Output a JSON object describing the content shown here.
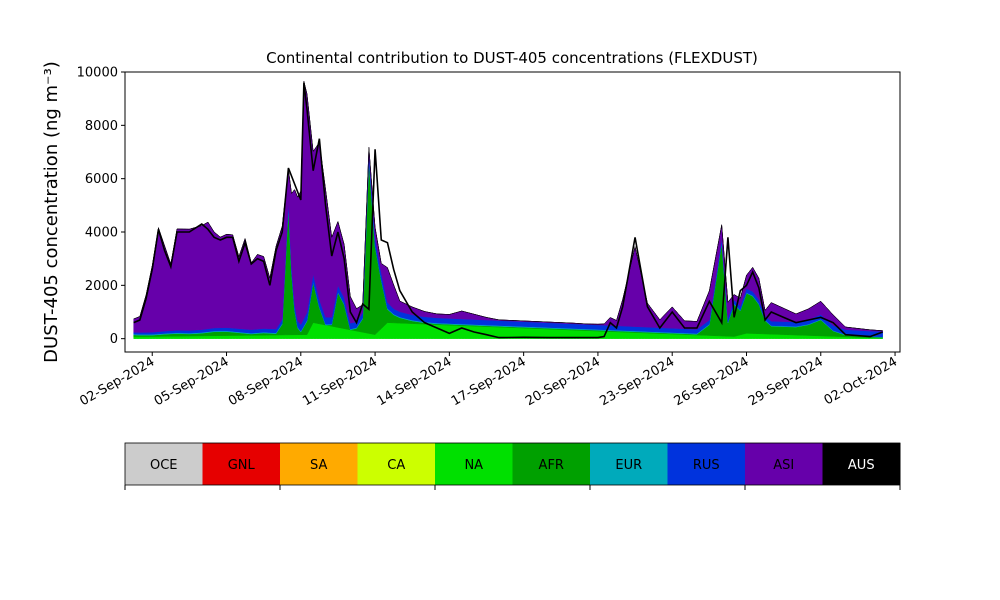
{
  "chart_data": {
    "type": "area",
    "title": "Continental contribution to DUST-405 concentrations (FLEXDUST)",
    "ylabel": "DUST-405 concentration (ng m⁻³)",
    "xlabel": "",
    "ylim": [
      -500,
      10000
    ],
    "yticks": [
      0,
      2000,
      4000,
      6000,
      8000,
      10000
    ],
    "xlim_days_from_2024_09_01": [
      -0.1,
      31.2
    ],
    "xticks": [
      "02-Sep-2024",
      "05-Sep-2024",
      "08-Sep-2024",
      "11-Sep-2024",
      "14-Sep-2024",
      "17-Sep-2024",
      "20-Sep-2024",
      "23-Sep-2024",
      "26-Sep-2024",
      "29-Sep-2024",
      "02-Oct-2024"
    ],
    "grid": false,
    "stacking_order": [
      "OCE",
      "GNL",
      "SA",
      "CA",
      "NA",
      "AFR",
      "EUR",
      "RUS",
      "ASI",
      "AUS"
    ],
    "legend": [
      {
        "name": "OCE",
        "color": "#cccccc",
        "text_color": "#000000"
      },
      {
        "name": "GNL",
        "color": "#e60000",
        "text_color": "#000000"
      },
      {
        "name": "SA",
        "color": "#ffaa00",
        "text_color": "#000000"
      },
      {
        "name": "CA",
        "color": "#ccff00",
        "text_color": "#000000"
      },
      {
        "name": "NA",
        "color": "#00e000",
        "text_color": "#000000"
      },
      {
        "name": "AFR",
        "color": "#00a000",
        "text_color": "#000000"
      },
      {
        "name": "EUR",
        "color": "#00aabb",
        "text_color": "#000000"
      },
      {
        "name": "RUS",
        "color": "#0033dd",
        "text_color": "#000000"
      },
      {
        "name": "ASI",
        "color": "#6600aa",
        "text_color": "#000000"
      },
      {
        "name": "AUS",
        "color": "#000000",
        "text_color": "#ffffff"
      }
    ],
    "series": [
      {
        "name": "NA",
        "color": "#00e000",
        "x_dates": [
          "2024-09-02 00:00",
          "2024-09-08 06:00",
          "2024-09-08 12:00",
          "2024-09-11 00:00",
          "2024-09-11 12:00",
          "2024-09-25 12:00",
          "2024-09-26 00:00",
          "2024-10-01 12:00"
        ],
        "values": [
          80,
          150,
          600,
          150,
          600,
          80,
          200,
          20
        ]
      },
      {
        "name": "AFR",
        "color": "#00a000",
        "x_dates": [
          "2024-09-01 06:00",
          "2024-09-01 12:00",
          "2024-09-02 00:00",
          "2024-09-02 12:00",
          "2024-09-03 00:00",
          "2024-09-03 12:00",
          "2024-09-04 00:00",
          "2024-09-04 12:00",
          "2024-09-05 00:00",
          "2024-09-05 12:00",
          "2024-09-06 00:00",
          "2024-09-06 12:00",
          "2024-09-07 00:00",
          "2024-09-07 06:00",
          "2024-09-07 12:00",
          "2024-09-07 16:00",
          "2024-09-07 20:00",
          "2024-09-08 00:00",
          "2024-09-08 06:00",
          "2024-09-08 12:00",
          "2024-09-08 18:00",
          "2024-09-09 00:00",
          "2024-09-09 06:00",
          "2024-09-09 12:00",
          "2024-09-09 18:00",
          "2024-09-10 00:00",
          "2024-09-10 06:00",
          "2024-09-10 12:00",
          "2024-09-10 18:00",
          "2024-09-11 00:00",
          "2024-09-11 06:00",
          "2024-09-11 12:00",
          "2024-09-11 18:00",
          "2024-09-12 00:00",
          "2024-09-12 12:00",
          "2024-09-13 00:00",
          "2024-09-13 12:00",
          "2024-09-14 00:00",
          "2024-09-15 00:00",
          "2024-09-16 00:00",
          "2024-09-17 00:00",
          "2024-09-18 00:00",
          "2024-09-19 00:00",
          "2024-09-20 00:00",
          "2024-09-21 00:00",
          "2024-09-22 00:00",
          "2024-09-23 00:00",
          "2024-09-24 00:00",
          "2024-09-24 12:00",
          "2024-09-25 00:00",
          "2024-09-25 06:00",
          "2024-09-25 12:00",
          "2024-09-25 18:00",
          "2024-09-26 00:00",
          "2024-09-26 06:00",
          "2024-09-26 12:00",
          "2024-09-26 18:00",
          "2024-09-27 00:00",
          "2024-09-27 12:00",
          "2024-09-28 00:00",
          "2024-09-28 12:00",
          "2024-09-29 00:00",
          "2024-09-29 12:00",
          "2024-09-30 00:00",
          "2024-10-01 00:00",
          "2024-10-01 12:00"
        ],
        "values": [
          60,
          50,
          50,
          80,
          100,
          80,
          100,
          150,
          150,
          100,
          50,
          80,
          50,
          400,
          4800,
          1500,
          300,
          100,
          500,
          1500,
          600,
          0,
          50,
          1300,
          900,
          0,
          100,
          500,
          6500,
          3300,
          1800,
          500,
          300,
          200,
          100,
          50,
          30,
          30,
          30,
          30,
          30,
          30,
          30,
          30,
          30,
          30,
          30,
          30,
          400,
          3500,
          500,
          1200,
          900,
          1500,
          1400,
          1100,
          500,
          300,
          300,
          300,
          400,
          600,
          200,
          60,
          30,
          30
        ]
      },
      {
        "name": "EUR",
        "color": "#00aabb",
        "x_dates": [
          "2024-09-01 06:00",
          "2024-09-10 00:00",
          "2024-09-20 00:00",
          "2024-10-01 12:00"
        ],
        "values": [
          30,
          30,
          30,
          20
        ]
      },
      {
        "name": "RUS",
        "color": "#0033dd",
        "x_dates": [
          "2024-09-01 06:00",
          "2024-09-07 06:00",
          "2024-09-08 00:00",
          "2024-09-08 06:00",
          "2024-09-10 12:00",
          "2024-09-11 00:00",
          "2024-09-11 18:00",
          "2024-09-25 12:00",
          "2024-10-01 12:00"
        ],
        "values": [
          70,
          150,
          250,
          300,
          200,
          300,
          200,
          150,
          200
        ]
      },
      {
        "name": "ASI",
        "color": "#6600aa",
        "x_dates": [
          "2024-09-01 06:00",
          "2024-09-01 12:00",
          "2024-09-01 18:00",
          "2024-09-02 00:00",
          "2024-09-02 06:00",
          "2024-09-02 12:00",
          "2024-09-02 18:00",
          "2024-09-03 00:00",
          "2024-09-03 12:00",
          "2024-09-04 00:00",
          "2024-09-04 06:00",
          "2024-09-04 12:00",
          "2024-09-04 18:00",
          "2024-09-05 00:00",
          "2024-09-05 06:00",
          "2024-09-05 12:00",
          "2024-09-05 18:00",
          "2024-09-06 00:00",
          "2024-09-06 06:00",
          "2024-09-06 12:00",
          "2024-09-06 18:00",
          "2024-09-07 00:00",
          "2024-09-07 06:00",
          "2024-09-07 12:00",
          "2024-09-07 18:00",
          "2024-09-08 00:00",
          "2024-09-08 03:00",
          "2024-09-08 06:00",
          "2024-09-08 12:00",
          "2024-09-08 18:00",
          "2024-09-09 00:00",
          "2024-09-09 06:00",
          "2024-09-09 12:00",
          "2024-09-09 18:00",
          "2024-09-10 00:00",
          "2024-09-10 06:00",
          "2024-09-10 12:00",
          "2024-09-10 18:00",
          "2024-09-11 00:00",
          "2024-09-11 06:00",
          "2024-09-11 12:00",
          "2024-09-11 18:00",
          "2024-09-12 00:00",
          "2024-09-12 12:00",
          "2024-09-13 00:00",
          "2024-09-13 12:00",
          "2024-09-14 00:00",
          "2024-09-14 12:00",
          "2024-09-15 00:00",
          "2024-09-15 12:00",
          "2024-09-16 00:00",
          "2024-09-17 00:00",
          "2024-09-18 00:00",
          "2024-09-19 00:00",
          "2024-09-19 12:00",
          "2024-09-20 00:00",
          "2024-09-20 06:00",
          "2024-09-20 12:00",
          "2024-09-20 18:00",
          "2024-09-21 00:00",
          "2024-09-21 12:00",
          "2024-09-22 00:00",
          "2024-09-22 12:00",
          "2024-09-23 00:00",
          "2024-09-23 12:00",
          "2024-09-24 00:00",
          "2024-09-24 12:00",
          "2024-09-25 00:00",
          "2024-09-25 06:00",
          "2024-09-25 12:00",
          "2024-09-25 18:00",
          "2024-09-26 00:00",
          "2024-09-26 06:00",
          "2024-09-26 12:00",
          "2024-09-26 18:00",
          "2024-09-27 00:00",
          "2024-09-27 12:00",
          "2024-09-28 00:00",
          "2024-09-28 12:00",
          "2024-09-29 00:00",
          "2024-09-29 12:00",
          "2024-09-30 00:00",
          "2024-10-01 00:00",
          "2024-10-01 12:00"
        ],
        "values": [
          500,
          600,
          1400,
          2500,
          3900,
          3200,
          2500,
          3800,
          3800,
          3900,
          4000,
          3600,
          3400,
          3500,
          3500,
          2700,
          3400,
          2500,
          2800,
          2700,
          1900,
          3100,
          3500,
          1200,
          4300,
          5000,
          8900,
          8200,
          4600,
          5900,
          4800,
          3000,
          2400,
          2000,
          1000,
          500,
          300,
          200,
          400,
          350,
          1300,
          900,
          400,
          300,
          200,
          150,
          150,
          300,
          200,
          100,
          30,
          30,
          30,
          30,
          20,
          30,
          50,
          300,
          200,
          1000,
          3000,
          900,
          300,
          800,
          300,
          300,
          1100,
          500,
          600,
          200,
          300,
          500,
          900,
          800,
          200,
          700,
          500,
          300,
          400,
          500,
          400,
          100,
          50,
          30
        ]
      },
      {
        "name": "AUS",
        "color": "#000000",
        "x_dates": [
          "2024-09-01 06:00",
          "2024-10-01 12:00"
        ],
        "values": [
          0,
          0
        ]
      }
    ],
    "total_outline": {
      "x_dates": [
        "2024-09-01 06:00",
        "2024-09-01 12:00",
        "2024-09-01 18:00",
        "2024-09-02 00:00",
        "2024-09-02 06:00",
        "2024-09-02 12:00",
        "2024-09-02 18:00",
        "2024-09-03 00:00",
        "2024-09-03 12:00",
        "2024-09-04 00:00",
        "2024-09-04 06:00",
        "2024-09-04 12:00",
        "2024-09-04 18:00",
        "2024-09-05 00:00",
        "2024-09-05 06:00",
        "2024-09-05 12:00",
        "2024-09-05 18:00",
        "2024-09-06 00:00",
        "2024-09-06 06:00",
        "2024-09-06 12:00",
        "2024-09-06 18:00",
        "2024-09-07 00:00",
        "2024-09-07 06:00",
        "2024-09-07 12:00",
        "2024-09-07 18:00",
        "2024-09-08 00:00",
        "2024-09-08 03:00",
        "2024-09-08 06:00",
        "2024-09-08 12:00",
        "2024-09-08 18:00",
        "2024-09-09 00:00",
        "2024-09-09 06:00",
        "2024-09-09 12:00",
        "2024-09-09 18:00",
        "2024-09-10 00:00",
        "2024-09-10 06:00",
        "2024-09-10 12:00",
        "2024-09-10 18:00",
        "2024-09-11 00:00",
        "2024-09-11 06:00",
        "2024-09-11 12:00",
        "2024-09-11 18:00",
        "2024-09-12 00:00",
        "2024-09-12 12:00",
        "2024-09-13 00:00",
        "2024-09-13 12:00",
        "2024-09-14 00:00",
        "2024-09-14 12:00",
        "2024-09-15 00:00",
        "2024-09-15 12:00",
        "2024-09-16 00:00",
        "2024-09-17 00:00",
        "2024-09-18 00:00",
        "2024-09-19 00:00",
        "2024-09-19 12:00",
        "2024-09-20 00:00",
        "2024-09-20 06:00",
        "2024-09-20 12:00",
        "2024-09-20 18:00",
        "2024-09-21 00:00",
        "2024-09-21 12:00",
        "2024-09-22 00:00",
        "2024-09-22 12:00",
        "2024-09-23 00:00",
        "2024-09-23 12:00",
        "2024-09-24 00:00",
        "2024-09-24 12:00",
        "2024-09-25 00:00",
        "2024-09-25 06:00",
        "2024-09-25 12:00",
        "2024-09-25 18:00",
        "2024-09-26 00:00",
        "2024-09-26 06:00",
        "2024-09-26 12:00",
        "2024-09-26 18:00",
        "2024-09-27 00:00",
        "2024-09-27 12:00",
        "2024-09-28 00:00",
        "2024-09-28 12:00",
        "2024-09-29 00:00",
        "2024-09-29 12:00",
        "2024-09-30 00:00",
        "2024-10-01 00:00",
        "2024-10-01 12:00"
      ],
      "values": [
        600,
        700,
        1500,
        2600,
        4100,
        3300,
        2700,
        4000,
        4000,
        4300,
        4100,
        3800,
        3700,
        3800,
        3800,
        2900,
        3600,
        2800,
        3000,
        2900,
        2000,
        3300,
        4000,
        6400,
        5800,
        5200,
        9600,
        8600,
        6300,
        7500,
        5000,
        3100,
        4000,
        3000,
        1000,
        600,
        1300,
        1100,
        7100,
        3700,
        3600,
        2600,
        1800,
        1000,
        600,
        400,
        200,
        400,
        250,
        150,
        40,
        50,
        40,
        40,
        40,
        40,
        80,
        600,
        400,
        1200,
        3800,
        1200,
        400,
        1000,
        400,
        400,
        1400,
        600,
        3800,
        800,
        1800,
        2000,
        2500,
        1900,
        700,
        1000,
        800,
        600,
        700,
        800,
        600,
        150,
        80,
        250
      ]
    }
  }
}
